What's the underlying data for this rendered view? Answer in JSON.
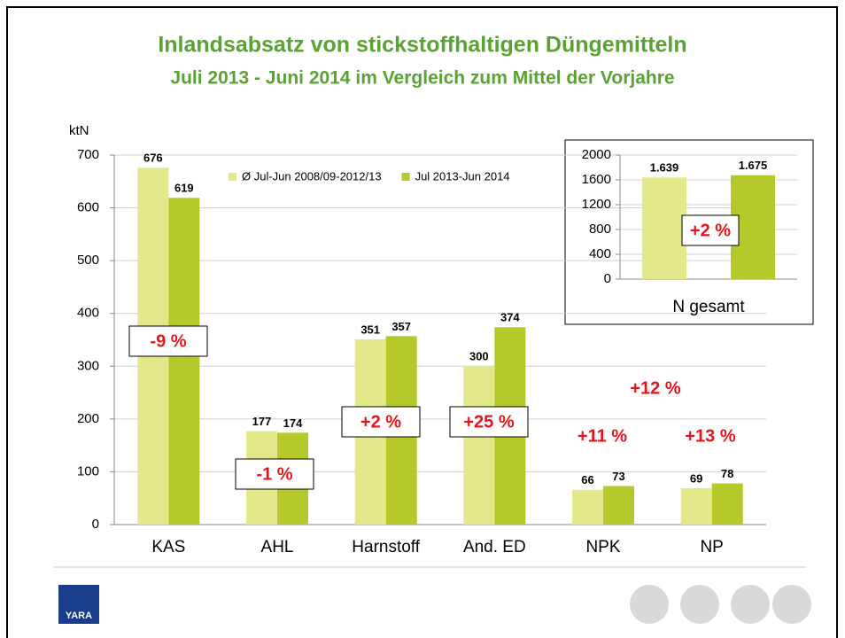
{
  "chart_data": [
    {
      "type": "bar",
      "title": "Inlandsabsatz von stickstoffhaltigen Düngemitteln",
      "subtitle": "Juli 2013 - Juni 2014 im Vergleich zum Mittel der Vorjahre",
      "y_label": "ktN",
      "categories": [
        "KAS",
        "AHL",
        "Harnstoff",
        "And. ED",
        "NPK",
        "NP"
      ],
      "series": [
        {
          "name": "Ø Jul-Jun 2008/09-2012/13",
          "color": "#e3e98b",
          "values": [
            676,
            177,
            351,
            300,
            66,
            69
          ]
        },
        {
          "name": "Jul 2013-Jun 2014",
          "color": "#b5c92b",
          "values": [
            619,
            174,
            357,
            374,
            73,
            78
          ]
        }
      ],
      "ylim": [
        0,
        700
      ],
      "yticks": [
        0,
        100,
        200,
        300,
        400,
        500,
        600,
        700
      ],
      "grid": true,
      "legend": "top",
      "annotations": [
        "-9 %",
        "-1 %",
        "+2 %",
        "+25 %",
        "+11 %",
        "+13 %",
        "+12 %"
      ]
    },
    {
      "type": "bar",
      "categories": [
        "N gesamt"
      ],
      "series": [
        {
          "name": "Ø Jul-Jun 2008/09-2012/13",
          "color": "#e3e98b",
          "values": [
            1639
          ],
          "value_labels": [
            "1.639"
          ]
        },
        {
          "name": "Jul 2013-Jun 2014",
          "color": "#b5c92b",
          "values": [
            1675
          ],
          "value_labels": [
            "1.675"
          ]
        }
      ],
      "ylim": [
        0,
        2000
      ],
      "yticks": [
        0,
        400,
        800,
        1200,
        1600,
        2000
      ],
      "grid": true,
      "annotations": [
        "+2 %"
      ]
    }
  ],
  "logo": "YARA"
}
